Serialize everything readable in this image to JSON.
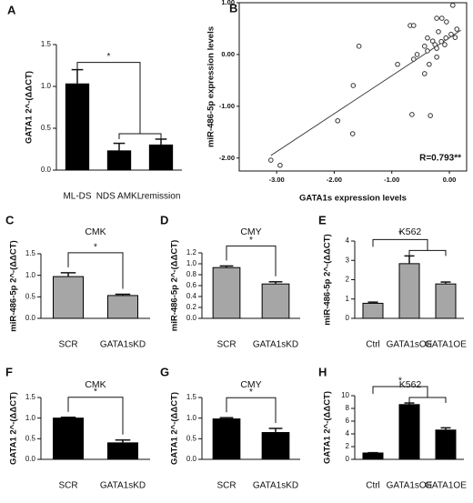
{
  "chart_data": [
    {
      "type": "bar",
      "panel": "A",
      "ylabel": "GATA1 2^-(ΔΔCT)",
      "categories": [
        "ML-DS",
        "NDS AMKL",
        "remission"
      ],
      "values": [
        1.03,
        0.23,
        0.3
      ],
      "errors": [
        0.17,
        0.09,
        0.07
      ],
      "color": "#000000",
      "ylim": [
        0,
        1.5
      ],
      "yticks": [
        {
          "value": 0,
          "label": "0.0"
        },
        0.5,
        {
          "value": 1,
          "label": "1.0"
        },
        1.5
      ],
      "significance": "*"
    },
    {
      "type": "scatter",
      "panel": "B",
      "xlabel": "GATA1s expression levels",
      "ylabel": "miR-486-5p expression levels",
      "x": [
        0.06,
        -0.22,
        -0.13,
        -0.05,
        -0.68,
        -0.62,
        0.13,
        -0.19,
        0.03,
        0.1,
        -0.38,
        -0.06,
        -0.29,
        -0.14,
        -0.25,
        -0.22,
        -0.38,
        -0.43,
        -0.08,
        -1.57,
        -0.56,
        -0.62,
        -0.9,
        -0.35,
        -0.43,
        -0.22,
        -1.67,
        -0.65,
        -0.33,
        -1.94,
        -1.68,
        -3.1,
        -2.94
      ],
      "y": [
        0.95,
        0.7,
        0.7,
        0.63,
        0.56,
        0.56,
        0.49,
        0.44,
        0.39,
        0.33,
        0.32,
        0.32,
        0.26,
        0.25,
        0.19,
        0.12,
        0.07,
        0.16,
        0.19,
        0.16,
        0.0,
        -0.09,
        -0.19,
        -0.19,
        -0.37,
        -0.05,
        -0.6,
        -1.16,
        -1.18,
        -1.28,
        -1.53,
        -2.04,
        -2.14
      ],
      "trendline": {
        "x": [
          -3.1,
          0.2
        ],
        "y": [
          -1.95,
          0.47
        ]
      },
      "xlim": [
        -3.65,
        0.3
      ],
      "ylim": [
        -2.25,
        1.0
      ],
      "xticks": [
        {
          "value": -3,
          "label": "-3.00"
        },
        {
          "value": -2,
          "label": "-2.00"
        },
        {
          "value": -1,
          "label": "-1.00"
        },
        {
          "value": 0,
          "label": "0.00"
        }
      ],
      "yticks": [
        {
          "value": -2,
          "label": "-2.00"
        },
        {
          "value": -1,
          "label": "-1.00"
        },
        {
          "value": 0,
          "label": "0.00"
        },
        {
          "value": 1,
          "label": "1.00"
        }
      ],
      "annotation": "R=0.793**"
    },
    {
      "type": "bar",
      "panel": "C",
      "title": "CMK",
      "ylabel": "miR-486-5p 2^-(ΔΔCT)",
      "categories": [
        "SCR",
        "GATA1sKD"
      ],
      "values": [
        0.97,
        0.53
      ],
      "errors": [
        0.09,
        0.03
      ],
      "color": "#a6a6a6",
      "ylim": [
        0,
        1.5
      ],
      "yticks": [
        {
          "value": 0,
          "label": "0.0"
        },
        0.5,
        {
          "value": 1,
          "label": "1.0"
        },
        1.5
      ],
      "significance": "*"
    },
    {
      "type": "bar",
      "panel": "D",
      "title": "CMY",
      "ylabel": "miR-486-5p 2^-(ΔΔCT)",
      "categories": [
        "SCR",
        "GATA1sKD"
      ],
      "values": [
        0.93,
        0.63
      ],
      "errors": [
        0.03,
        0.04
      ],
      "color": "#a6a6a6",
      "ylim": [
        0,
        1.2
      ],
      "yticks": [
        {
          "value": 0,
          "label": "0.0"
        },
        0.2,
        0.4,
        0.6,
        0.8,
        {
          "value": 1,
          "label": "1.0"
        },
        1.2
      ],
      "significance": "*"
    },
    {
      "type": "bar",
      "panel": "E",
      "title": "K562",
      "ylabel": "miR-486-5p 2^-(ΔΔCT)",
      "categories": [
        "Ctrl",
        "GATA1sOE",
        "GATA1OE"
      ],
      "values": [
        0.78,
        2.83,
        1.78
      ],
      "errors": [
        0.06,
        0.4,
        0.1
      ],
      "color": "#a6a6a6",
      "ylim": [
        0,
        4
      ],
      "yticks": [
        0,
        1,
        2,
        3,
        4
      ],
      "significance": "*"
    },
    {
      "type": "bar",
      "panel": "F",
      "title": "CMK",
      "ylabel": "GATA1 2^-(ΔΔCT)",
      "categories": [
        "SCR",
        "GATA1sKD"
      ],
      "values": [
        1.0,
        0.4
      ],
      "errors": [
        0.02,
        0.07
      ],
      "color": "#000000",
      "ylim": [
        0,
        1.5
      ],
      "yticks": [
        {
          "value": 0,
          "label": "0.0"
        },
        0.5,
        {
          "value": 1,
          "label": "1.0"
        },
        1.5
      ],
      "significance": "*"
    },
    {
      "type": "bar",
      "panel": "G",
      "title": "CMY",
      "ylabel": "GATA1 2^-(ΔΔCT)",
      "categories": [
        "SCR",
        "GATA1sKD"
      ],
      "values": [
        0.98,
        0.65
      ],
      "errors": [
        0.03,
        0.1
      ],
      "color": "#000000",
      "ylim": [
        0,
        1.5
      ],
      "yticks": [
        {
          "value": 0,
          "label": "0.0"
        },
        0.5,
        {
          "value": 1,
          "label": "1.0"
        },
        1.5
      ],
      "significance": "*"
    },
    {
      "type": "bar",
      "panel": "H",
      "title": "K562",
      "ylabel": "GATA1 2^-(ΔΔCT)",
      "categories": [
        "Ctrl",
        "GATA1sOE",
        "GATA1OE"
      ],
      "values": [
        1.0,
        8.6,
        4.6
      ],
      "errors": [
        0.05,
        0.25,
        0.35
      ],
      "color": "#000000",
      "ylim": [
        0,
        10
      ],
      "yticks": [
        0,
        2,
        4,
        6,
        8,
        10
      ],
      "significance": "*"
    }
  ]
}
